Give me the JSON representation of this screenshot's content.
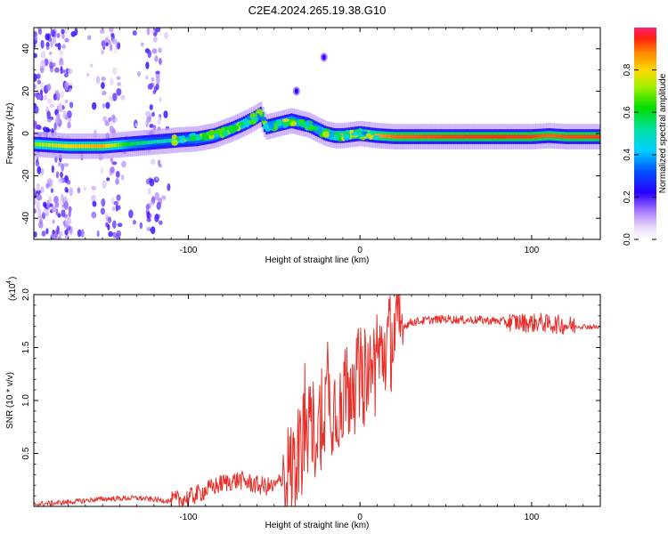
{
  "chart_data": [
    {
      "type": "heatmap",
      "title": "C2E4.2024.265.19.38.G10",
      "xlabel": "Height of straight line (km)",
      "ylabel": "Frequency (Hz)",
      "xlim": [
        -190,
        140
      ],
      "ylim": [
        -50,
        50
      ],
      "xticks": [
        -100,
        0,
        100
      ],
      "xtick_labels": [
        "-100",
        "0",
        "100"
      ],
      "yticks": [
        -40,
        -20,
        0,
        20,
        40
      ],
      "ytick_labels": [
        "-40",
        "-20",
        "0",
        "20",
        "40"
      ],
      "colorbar": {
        "label": "Normalized spectral amplitude",
        "range": [
          0,
          1
        ],
        "ticks": [
          0.0,
          0.2,
          0.4,
          0.6,
          0.8
        ],
        "tick_labels": [
          "0.0",
          "0.2",
          "0.4",
          "0.6",
          "0.8"
        ]
      },
      "ridge": {
        "x": [
          -190,
          -170,
          -150,
          -135,
          -120,
          -105,
          -95,
          -85,
          -75,
          -68,
          -62,
          -58,
          -55,
          -50,
          -45,
          -40,
          -35,
          -30,
          -25,
          -20,
          -15,
          -10,
          -5,
          0,
          5,
          10,
          20,
          40,
          60,
          80,
          100,
          110,
          120,
          140
        ],
        "freq": [
          -5,
          -6,
          -6,
          -5,
          -4,
          -3,
          -2.5,
          -1,
          2,
          4.5,
          7,
          9,
          3,
          4,
          5,
          6,
          5,
          4,
          2,
          0,
          -1,
          -1,
          -0.5,
          0,
          -0.5,
          -1,
          -1.5,
          -1.5,
          -1.5,
          -1.5,
          -1.5,
          -1,
          -1.5,
          -1.5
        ],
        "intensity": [
          0.7,
          0.8,
          0.85,
          0.6,
          0.5,
          0.5,
          0.55,
          0.6,
          0.6,
          0.7,
          0.75,
          0.5,
          0.55,
          0.6,
          0.65,
          0.6,
          0.55,
          0.5,
          0.6,
          0.7,
          0.8,
          0.85,
          0.9,
          0.95,
          0.8,
          0.85,
          0.9,
          0.92,
          0.93,
          0.94,
          0.93,
          0.9,
          0.92,
          0.93
        ]
      },
      "outliers": [
        {
          "x": -21,
          "freq": 36
        },
        {
          "x": -37,
          "freq": 20
        }
      ]
    },
    {
      "type": "line",
      "xlabel": "Height of straight line (km)",
      "ylabel": "SNR (10 * v/v)",
      "y_multiplier_label": "(x10",
      "y_multiplier_exp": "4",
      "xlim": [
        -190,
        140
      ],
      "ylim": [
        0,
        2.0
      ],
      "xticks": [
        -100,
        0,
        100
      ],
      "xtick_labels": [
        "-100",
        "0",
        "100"
      ],
      "yticks": [
        0.5,
        1.0,
        1.5,
        2.0
      ],
      "ytick_labels": [
        "0.5",
        "1.0",
        "1.5",
        "2.0"
      ],
      "color": "#e8302a",
      "series": [
        {
          "name": "SNR",
          "x": [
            -190,
            -170,
            -150,
            -130,
            -110,
            -100,
            -90,
            -80,
            -70,
            -60,
            -50,
            -40,
            -35,
            -30,
            -25,
            -20,
            -15,
            -10,
            -5,
            0,
            5,
            10,
            15,
            20,
            25,
            30,
            40,
            50,
            60,
            70,
            80,
            90,
            100,
            105,
            110,
            115,
            120,
            130,
            140
          ],
          "y": [
            0.02,
            0.04,
            0.07,
            0.08,
            0.05,
            0.08,
            0.15,
            0.22,
            0.25,
            0.2,
            0.18,
            0.35,
            0.5,
            0.8,
            0.7,
            1.0,
            0.95,
            1.05,
            1.15,
            1.2,
            1.25,
            1.35,
            1.5,
            1.62,
            1.7,
            1.74,
            1.76,
            1.77,
            1.76,
            1.76,
            1.75,
            1.74,
            1.73,
            1.74,
            1.72,
            1.72,
            1.71,
            1.7,
            1.69
          ]
        }
      ]
    }
  ]
}
